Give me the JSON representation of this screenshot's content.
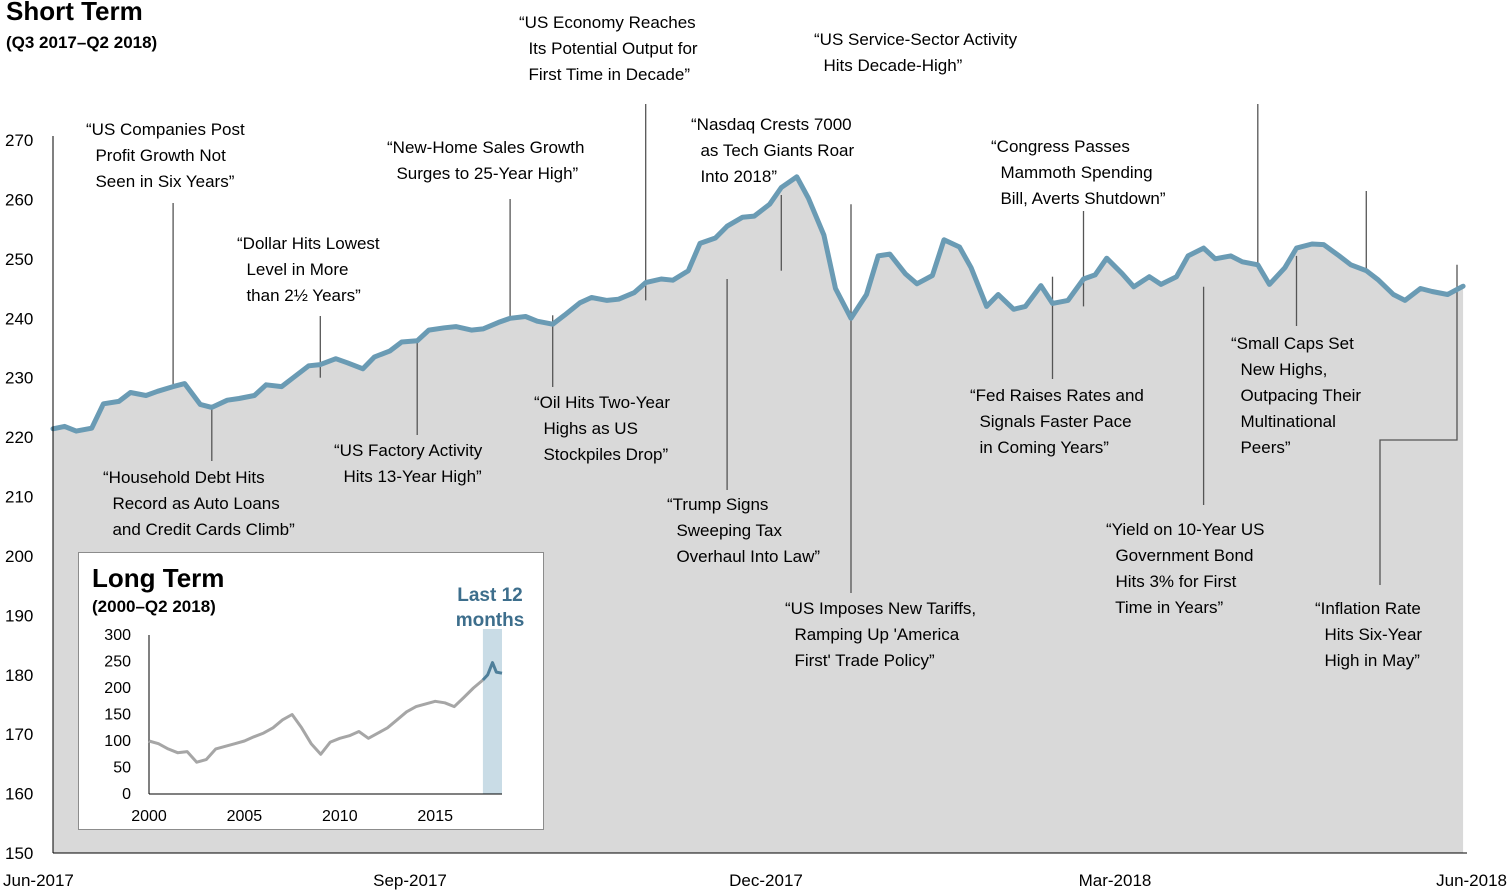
{
  "chart_data": [
    {
      "type": "area",
      "title": "Short Term",
      "subtitle": "(Q3 2017–Q2 2018)",
      "ylim": [
        150,
        270
      ],
      "y_ticks": [
        150,
        160,
        170,
        180,
        190,
        200,
        210,
        220,
        230,
        240,
        250,
        260,
        270
      ],
      "x_tick_labels": [
        "Jun-2017",
        "Sep-2017",
        "Dec-2017",
        "Mar-2018",
        "Jun-2018"
      ],
      "grid": false,
      "colors": {
        "line": "#6a9bb4",
        "fill": "#d9d9d9",
        "leader": "#555555"
      },
      "x": [
        "2017-06-30",
        "2017-07-03",
        "2017-07-06",
        "2017-07-10",
        "2017-07-13",
        "2017-07-17",
        "2017-07-20",
        "2017-07-24",
        "2017-07-27",
        "2017-07-31",
        "2017-08-03",
        "2017-08-07",
        "2017-08-10",
        "2017-08-14",
        "2017-08-17",
        "2017-08-21",
        "2017-08-24",
        "2017-08-28",
        "2017-08-31",
        "2017-09-04",
        "2017-09-07",
        "2017-09-11",
        "2017-09-14",
        "2017-09-18",
        "2017-09-21",
        "2017-09-25",
        "2017-09-28",
        "2017-10-02",
        "2017-10-05",
        "2017-10-09",
        "2017-10-12",
        "2017-10-16",
        "2017-10-19",
        "2017-10-23",
        "2017-10-26",
        "2017-10-30",
        "2017-11-02",
        "2017-11-06",
        "2017-11-09",
        "2017-11-13",
        "2017-11-16",
        "2017-11-20",
        "2017-11-23",
        "2017-11-27",
        "2017-11-30",
        "2017-12-04",
        "2017-12-07",
        "2017-12-11",
        "2017-12-14",
        "2017-12-18",
        "2017-12-21",
        "2017-12-25",
        "2017-12-28",
        "2018-01-01",
        "2018-01-04",
        "2018-01-08",
        "2018-01-11",
        "2018-01-15",
        "2018-01-18",
        "2018-01-22",
        "2018-01-26",
        "2018-01-29",
        "2018-02-01",
        "2018-02-05",
        "2018-02-08",
        "2018-02-12",
        "2018-02-15",
        "2018-02-19",
        "2018-02-22",
        "2018-02-26",
        "2018-03-01",
        "2018-03-05",
        "2018-03-08",
        "2018-03-12",
        "2018-03-15",
        "2018-03-19",
        "2018-03-23",
        "2018-03-26",
        "2018-03-29",
        "2018-04-02",
        "2018-04-05",
        "2018-04-09",
        "2018-04-12",
        "2018-04-16",
        "2018-04-19",
        "2018-04-23",
        "2018-04-26",
        "2018-04-30",
        "2018-05-03",
        "2018-05-07",
        "2018-05-10",
        "2018-05-14",
        "2018-05-17",
        "2018-05-21",
        "2018-05-24",
        "2018-05-28",
        "2018-05-31",
        "2018-06-04",
        "2018-06-07",
        "2018-06-11",
        "2018-06-14",
        "2018-06-18",
        "2018-06-21",
        "2018-06-25",
        "2018-06-29"
      ],
      "y": [
        221.4,
        221.8,
        221.0,
        221.5,
        225.6,
        226.0,
        227.5,
        227.0,
        227.7,
        228.5,
        229.0,
        225.5,
        225.0,
        226.2,
        226.5,
        227.0,
        228.8,
        228.5,
        230.0,
        232.0,
        232.2,
        233.2,
        232.5,
        231.5,
        233.5,
        234.5,
        236.0,
        236.2,
        238.0,
        238.4,
        238.6,
        238.0,
        238.2,
        239.3,
        240.0,
        240.3,
        239.5,
        239.0,
        240.5,
        242.6,
        243.5,
        243.0,
        243.2,
        244.3,
        246.0,
        246.6,
        246.4,
        248.0,
        252.6,
        253.5,
        255.5,
        257.0,
        257.2,
        259.2,
        262.0,
        263.8,
        260.2,
        254.0,
        245.0,
        240.0,
        244.0,
        250.5,
        250.8,
        247.5,
        245.8,
        247.2,
        253.2,
        252.0,
        248.5,
        242.0,
        244.0,
        241.5,
        242.0,
        245.5,
        242.5,
        243.0,
        246.6,
        247.3,
        250.1,
        247.5,
        245.3,
        247.0,
        245.7,
        247.0,
        250.5,
        251.8,
        250.0,
        250.5,
        249.5,
        249.0,
        245.7,
        248.5,
        251.8,
        252.5,
        252.4,
        250.5,
        249.0,
        248.0,
        246.5,
        244.0,
        243.0,
        245.0,
        244.5,
        244.0,
        245.4
      ],
      "annotations": [
        {
          "text": "“US Companies Post\n  Profit Growth Not\n  Seen in Six Years”",
          "date": "2017-07-31",
          "y": 228.5
        },
        {
          "text": "“Household Debt Hits\n  Record as Auto Loans\n  and Credit Cards Climb”",
          "date": "2017-08-10",
          "y": 225.0
        },
        {
          "text": "“Dollar Hits Lowest\n  Level in More\n  than 2½ Years”",
          "date": "2017-09-07",
          "y": 230.0
        },
        {
          "text": "“US Factory Activity\n  Hits 13-Year High”",
          "date": "2017-10-02",
          "y": 236.2
        },
        {
          "text": "“New-Home Sales Growth\n  Surges to 25-Year High”",
          "date": "2017-10-26",
          "y": 240.0
        },
        {
          "text": "“Oil Hits Two-Year\n  Highs as US\n  Stockpiles Drop”",
          "date": "2017-11-06",
          "y": 240.5
        },
        {
          "text": "“US Economy Reaches\n  Its Potential Output for\n  First Time in Decade”",
          "date": "2017-11-30",
          "y": 243.0
        },
        {
          "text": "“Trump Signs\n  Sweeping Tax\n  Overhaul Into Law”",
          "date": "2017-12-21",
          "y": 246.6
        },
        {
          "text": "“Nasdaq Crests 7000\n  as Tech Giants Roar\n  Into 2018”",
          "date": "2018-01-04",
          "y": 248.0
        },
        {
          "text": "“US Imposes New Tariffs,\n  Ramping Up 'America\n  First' Trade Policy”",
          "date": "2018-01-22",
          "y": 259.2
        },
        {
          "text": "“US Service-Sector Activity\n  Hits Decade-High”",
          "date": "2018-02-05",
          "y": 262.0
        },
        {
          "text": "“Fed Raises Rates and\n  Signals Faster Pace\n  in Coming Years”",
          "date": "2018-03-15",
          "y": 247.0
        },
        {
          "text": "“Congress Passes\n  Mammoth Spending\n  Bill, Averts Shutdown”",
          "date": "2018-03-23",
          "y": 242.0
        },
        {
          "text": "“Yield on 10-Year US\n  Government Bond\n  Hits 3% for First\n  Time in Years”",
          "date": "2018-04-23",
          "y": 245.3
        },
        {
          "text": "“Small Caps Set\n  New Highs,\n  Outpacing Their\n  Multinational\n  Peers”",
          "date": "2018-05-17",
          "y": 250.5
        },
        {
          "text": "“Inflation Rate\n  Hits Six-Year\n  High in May”",
          "date": "2018-06-11",
          "y": 249.0
        }
      ]
    },
    {
      "type": "line",
      "title": "Long Term",
      "subtitle": "(2000–Q2 2018)",
      "ylim": [
        0,
        300
      ],
      "y_ticks": [
        0,
        50,
        100,
        150,
        200,
        250,
        300
      ],
      "x_ticks": [
        2000,
        2005,
        2010,
        2015
      ],
      "highlight_label": "Last 12\nmonths",
      "highlight_range": [
        2017.5,
        2018.5
      ],
      "colors": {
        "line": "#a6a6a6",
        "recent_line": "#4e7f9a",
        "highlight": "#c9dce6"
      },
      "x": [
        2000.0,
        2000.5,
        2001.0,
        2001.5,
        2002.0,
        2002.5,
        2003.0,
        2003.5,
        2004.0,
        2004.5,
        2005.0,
        2005.5,
        2006.0,
        2006.5,
        2007.0,
        2007.5,
        2008.0,
        2008.5,
        2009.0,
        2009.5,
        2010.0,
        2010.5,
        2011.0,
        2011.5,
        2012.0,
        2012.5,
        2013.0,
        2013.5,
        2014.0,
        2014.5,
        2015.0,
        2015.5,
        2016.0,
        2016.5,
        2017.0,
        2017.5,
        2017.75,
        2018.0,
        2018.2,
        2018.5
      ],
      "y": [
        100,
        95,
        85,
        78,
        80,
        60,
        65,
        85,
        90,
        95,
        100,
        108,
        115,
        125,
        140,
        150,
        125,
        95,
        75,
        98,
        105,
        110,
        118,
        105,
        115,
        125,
        140,
        155,
        165,
        170,
        175,
        172,
        165,
        182,
        200,
        215,
        225,
        248,
        230,
        228
      ]
    }
  ]
}
